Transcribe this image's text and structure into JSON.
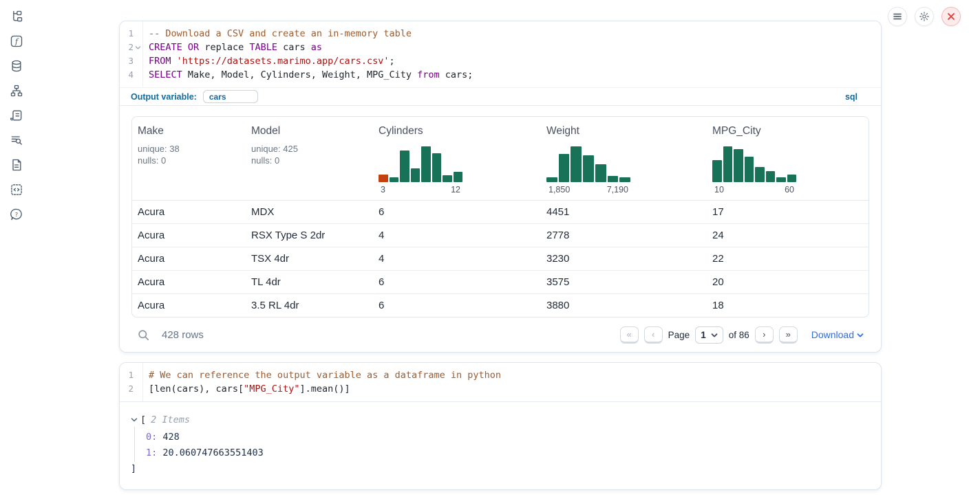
{
  "app": {
    "sidebar": {
      "icons": [
        "file-explorer",
        "functions",
        "datasources",
        "dependency-graph",
        "snippets",
        "logs",
        "documentation",
        "scratchpad",
        "help"
      ]
    },
    "topbar": {
      "icons": [
        "menu",
        "settings-gear",
        "shutdown-close"
      ]
    },
    "colors": {
      "accent_blue": "#146a9e",
      "link_blue": "#2d6ce5",
      "hist_green": "#177258",
      "hist_orange": "#c2410c",
      "danger_red": "#e03c3c"
    }
  },
  "cell1": {
    "code": {
      "lines": [
        {
          "n": "1",
          "tokens": [
            {
              "t": "-- Download a CSV and create an in-memory table",
              "c": "comment"
            }
          ]
        },
        {
          "n": "2",
          "fold": true,
          "tokens": [
            {
              "t": "CREATE",
              "c": "kw"
            },
            {
              "t": " ",
              "c": "plain"
            },
            {
              "t": "OR",
              "c": "kw"
            },
            {
              "t": " replace ",
              "c": "plain"
            },
            {
              "t": "TABLE",
              "c": "kw"
            },
            {
              "t": " cars ",
              "c": "plain"
            },
            {
              "t": "as",
              "c": "kw"
            }
          ]
        },
        {
          "n": "3",
          "tokens": [
            {
              "t": "FROM",
              "c": "kw"
            },
            {
              "t": " ",
              "c": "plain"
            },
            {
              "t": "'https://datasets.marimo.app/cars.csv'",
              "c": "str"
            },
            {
              "t": ";",
              "c": "plain"
            }
          ]
        },
        {
          "n": "4",
          "tokens": [
            {
              "t": "SELECT",
              "c": "kw"
            },
            {
              "t": " Make, Model, Cylinders, Weight, MPG_City ",
              "c": "plain"
            },
            {
              "t": "from",
              "c": "kw"
            },
            {
              "t": " cars;",
              "c": "plain"
            }
          ]
        }
      ]
    },
    "output_variable_label": "Output variable:",
    "output_variable_value": "cars",
    "language_badge": "sql"
  },
  "table": {
    "columns": [
      {
        "label": "Make",
        "stats": {
          "unique": "unique: 38",
          "nulls": "nulls: 0"
        }
      },
      {
        "label": "Model",
        "stats": {
          "unique": "unique: 425",
          "nulls": "nulls: 0"
        }
      },
      {
        "label": "Cylinders",
        "min_label": "3",
        "max_label": "12",
        "histogram": {
          "type": "bar",
          "bar_color": "#177258",
          "highlight": {
            "index": 0,
            "color": "#c2410c"
          },
          "heights": [
            0.22,
            0.13,
            0.88,
            0.38,
            1.0,
            0.8,
            0.2,
            0.28
          ]
        }
      },
      {
        "label": "Weight",
        "min_label": "1,850",
        "max_label": "7,190",
        "histogram": {
          "type": "bar",
          "bar_color": "#177258",
          "heights": [
            0.13,
            0.78,
            1.0,
            0.75,
            0.5,
            0.18,
            0.13
          ]
        }
      },
      {
        "label": "MPG_City",
        "min_label": "10",
        "max_label": "60",
        "histogram": {
          "type": "bar",
          "bar_color": "#177258",
          "heights": [
            0.62,
            1.0,
            0.93,
            0.72,
            0.42,
            0.3,
            0.14,
            0.22
          ]
        }
      }
    ],
    "rows": [
      [
        "Acura",
        "MDX",
        "6",
        "4451",
        "17"
      ],
      [
        "Acura",
        "RSX Type S 2dr",
        "4",
        "2778",
        "24"
      ],
      [
        "Acura",
        "TSX 4dr",
        "4",
        "3230",
        "22"
      ],
      [
        "Acura",
        "TL 4dr",
        "6",
        "3575",
        "20"
      ],
      [
        "Acura",
        "3.5 RL 4dr",
        "6",
        "3880",
        "18"
      ]
    ],
    "footer": {
      "row_count": "428 rows",
      "page_label": "Page",
      "page_value": "1",
      "of_label": "of 86",
      "download_label": "Download"
    }
  },
  "cell2": {
    "code": {
      "lines": [
        {
          "n": "1",
          "tokens": [
            {
              "t": "# We can reference the output variable as a dataframe in python",
              "c": "comment"
            }
          ]
        },
        {
          "n": "2",
          "tokens": [
            {
              "t": "[len(cars), cars[",
              "c": "plain"
            },
            {
              "t": "\"MPG_City\"",
              "c": "str"
            },
            {
              "t": "].mean()]",
              "c": "plain"
            }
          ]
        }
      ]
    },
    "output": {
      "open_bracket": "[",
      "items_label": "2 Items",
      "items": [
        {
          "index": "0:",
          "value": "428"
        },
        {
          "index": "1:",
          "value": "20.060747663551403"
        }
      ],
      "close_bracket": "]"
    }
  }
}
